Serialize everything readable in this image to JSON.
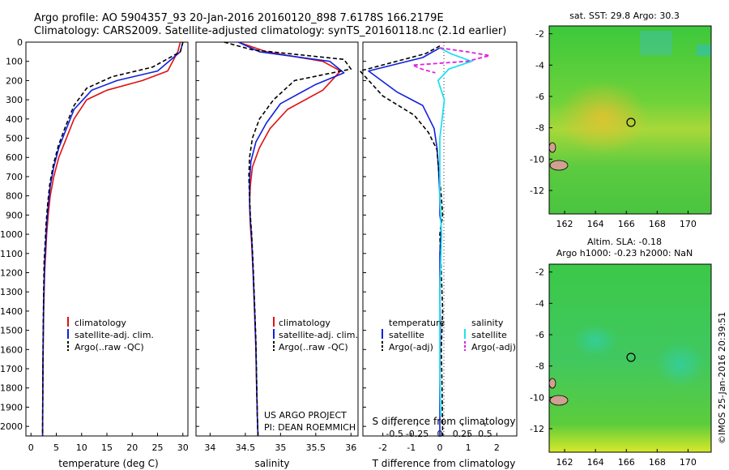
{
  "header": {
    "line1": "Argo profile: AO 5904357_93 20-Jan-2016 20160120_898 7.6178S 166.2179E",
    "line2": "Climatology: CARS2009. Satellite-adjusted climatology: synTS_20160118.nc (2.1d earlier)"
  },
  "colors": {
    "climatology": "#e01010",
    "satellite": "#1020e0",
    "argo": "#000000",
    "sal_satellite": "#20e0f0",
    "sal_argo": "#e020e0"
  },
  "depth_ticks": [
    0,
    100,
    200,
    300,
    400,
    500,
    600,
    700,
    800,
    900,
    1000,
    1100,
    1200,
    1300,
    1400,
    1500,
    1600,
    1700,
    1800,
    1900,
    2000
  ],
  "panels": {
    "temperature": {
      "xlabel": "temperature (deg C)",
      "xticks": [
        "0",
        "5",
        "10",
        "15",
        "20",
        "25",
        "30"
      ],
      "legend": [
        "climatology",
        "satellite-adj. clim.",
        "Argo(..raw -QC)"
      ]
    },
    "salinity": {
      "xlabel": "salinity",
      "xticks": [
        "34",
        "34.5",
        "35",
        "35.5",
        "36"
      ],
      "legend": [
        "climatology",
        "satellite-adj. clim.",
        "Argo(..raw -QC)"
      ],
      "note1": "US ARGO PROJECT",
      "note2": "PI: DEAN ROEMMICH"
    },
    "difference": {
      "xlabel": "T difference from climatology",
      "top_label": "S difference from climatology",
      "t_ticks": [
        "-2",
        "-1",
        "0",
        "1",
        "2"
      ],
      "s_ticks": [
        "-0.5",
        "-0.25",
        "0",
        "0.25",
        "0.5"
      ],
      "temp_header": "temperature",
      "sal_header": "salinity",
      "t_sat": "satellite",
      "t_argo": "Argo(-adj)",
      "s_sat": "satellite",
      "s_argo": "Argo(-adj)"
    }
  },
  "maps": {
    "sst_title": "sat. SST: 29.8 Argo: 30.3",
    "sla_title1": "Altim. SLA: -0.18",
    "sla_title2": "Argo h1000: -0.23 h2000: NaN",
    "xticks": [
      "162",
      "164",
      "166",
      "168",
      "170"
    ],
    "yticks": [
      "-2",
      "-4",
      "-6",
      "-8",
      "-10",
      "-12"
    ]
  },
  "credit": "©IMOS 25-Jan-2016 20:39:51",
  "chart_data": [
    {
      "type": "line",
      "title": "",
      "xlabel": "temperature (deg C)",
      "ylabel": "",
      "xlim": [
        -1,
        31
      ],
      "ylim": [
        2050,
        0
      ],
      "series": [
        {
          "name": "climatology",
          "x": [
            29.5,
            29,
            27,
            22,
            15,
            11,
            8.5,
            7,
            5.5,
            4.5,
            3.8,
            3.4,
            3.1,
            2.9,
            2.7,
            2.6,
            2.5,
            2.45,
            2.4,
            2.35,
            2.3
          ],
          "depth": [
            0,
            50,
            150,
            200,
            250,
            300,
            400,
            500,
            600,
            700,
            800,
            900,
            1000,
            1100,
            1200,
            1300,
            1400,
            1500,
            1600,
            1800,
            2050
          ]
        },
        {
          "name": "satellite-adj. clim.",
          "x": [
            30,
            29.5,
            25,
            17,
            12,
            8.5,
            7,
            5.5,
            4.5,
            3.8,
            3.4,
            3.1,
            2.9,
            2.7,
            2.6,
            2.5,
            2.45,
            2.4,
            2.35,
            2.3
          ],
          "depth": [
            0,
            50,
            150,
            200,
            250,
            350,
            450,
            550,
            650,
            750,
            850,
            950,
            1050,
            1150,
            1250,
            1350,
            1450,
            1550,
            1700,
            2050
          ]
        },
        {
          "name": "Argo(..raw -QC)",
          "x": [
            30,
            29.5,
            24,
            16,
            11,
            8.5,
            6.8,
            5.4,
            4.4,
            3.7,
            3.3,
            3.0,
            2.8,
            2.6,
            2.5,
            2.4,
            2.35,
            2.3
          ],
          "depth": [
            0,
            50,
            130,
            180,
            240,
            330,
            440,
            540,
            640,
            740,
            840,
            940,
            1040,
            1140,
            1300,
            1500,
            1750,
            2050
          ]
        }
      ]
    },
    {
      "type": "line",
      "title": "",
      "xlabel": "salinity",
      "ylabel": "",
      "xlim": [
        33.8,
        36.1
      ],
      "ylim": [
        2050,
        0
      ],
      "series": [
        {
          "name": "climatology",
          "x": [
            34.4,
            34.8,
            35.6,
            35.85,
            35.6,
            35.1,
            34.85,
            34.7,
            34.6,
            34.57,
            34.56,
            34.57,
            34.59,
            34.61,
            34.63,
            34.65,
            34.66,
            34.67,
            34.68
          ],
          "depth": [
            0,
            50,
            100,
            150,
            250,
            350,
            450,
            550,
            650,
            750,
            850,
            950,
            1050,
            1200,
            1400,
            1600,
            1800,
            1950,
            2050
          ]
        },
        {
          "name": "satellite-adj. clim.",
          "x": [
            34.4,
            34.7,
            35.7,
            35.9,
            35.5,
            35.0,
            34.8,
            34.65,
            34.58,
            34.56,
            34.56,
            34.57,
            34.59,
            34.61,
            34.63,
            34.65,
            34.66,
            34.67,
            34.68
          ],
          "depth": [
            0,
            50,
            100,
            160,
            220,
            320,
            420,
            520,
            620,
            720,
            820,
            920,
            1020,
            1180,
            1380,
            1580,
            1780,
            1950,
            2050
          ]
        },
        {
          "name": "Argo(..raw -QC)",
          "x": [
            34.2,
            34.6,
            35.9,
            36.0,
            35.2,
            34.9,
            34.7,
            34.6,
            34.56,
            34.55,
            34.56,
            34.57,
            34.59,
            34.61,
            34.63,
            34.65,
            34.66,
            34.67,
            34.68
          ],
          "depth": [
            0,
            40,
            90,
            140,
            200,
            300,
            400,
            500,
            600,
            700,
            800,
            900,
            1000,
            1150,
            1350,
            1550,
            1750,
            1950,
            2050
          ]
        }
      ]
    },
    {
      "type": "line",
      "title": "",
      "xlabel": "T difference from climatology",
      "ylabel": "",
      "xlim": [
        -2.7,
        2.7
      ],
      "ylim": [
        2050,
        0
      ],
      "series": [
        {
          "name": "satellite",
          "x": [
            0,
            -0.6,
            -2.5,
            -1.5,
            -0.6,
            -0.2,
            -0.1,
            -0.05,
            0,
            0,
            0.05,
            0,
            0,
            0.02,
            0,
            0
          ],
          "depth": [
            30,
            80,
            150,
            260,
            330,
            450,
            550,
            650,
            800,
            900,
            950,
            1100,
            1300,
            1500,
            1800,
            2050
          ]
        },
        {
          "name": "Argo(-adj)",
          "x": [
            0,
            -0.5,
            -2.8,
            -2.0,
            -0.9,
            -0.4,
            -0.1,
            -0.05,
            0.05,
            0.1,
            0.0,
            0.05,
            0.1,
            0.05,
            0.08,
            0.1
          ],
          "depth": [
            20,
            60,
            150,
            280,
            380,
            470,
            560,
            650,
            800,
            900,
            1000,
            1200,
            1400,
            1600,
            1800,
            2050
          ]
        },
        {
          "name": "salinity satellite",
          "x": [
            0,
            0.12,
            0.35,
            0.1,
            -0.02,
            0.05,
            0,
            0,
            0.02,
            0,
            0,
            0.01
          ],
          "depth": [
            30,
            60,
            100,
            140,
            200,
            300,
            500,
            800,
            1000,
            1300,
            1700,
            1950
          ]
        },
        {
          "name": "salinity Argo(-adj)",
          "x": [
            0,
            0.3,
            0.55,
            0.3,
            -0.3,
            -0.2,
            -0.05
          ],
          "depth": [
            30,
            50,
            70,
            100,
            120,
            140,
            160
          ]
        }
      ]
    }
  ]
}
